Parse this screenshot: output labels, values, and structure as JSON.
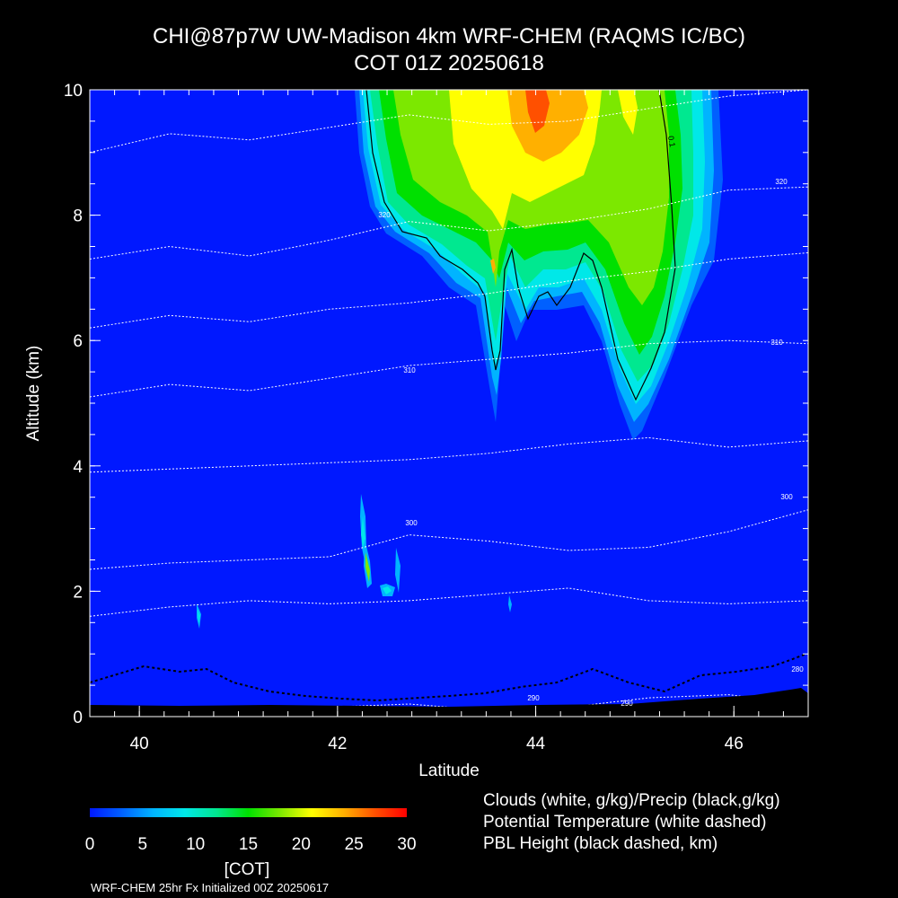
{
  "chart_data": {
    "type": "heatmap",
    "title": "CHI@87p7W UW-Madison 4km WRF-CHEM (RAQMS IC/BC)",
    "subtitle": "COT 01Z 20250618",
    "xlabel": "Latitude",
    "ylabel": "Altitude (km)",
    "xlim": [
      39.5,
      46.75
    ],
    "ylim": [
      0,
      10
    ],
    "x_ticks": [
      40,
      42,
      44,
      46
    ],
    "y_ticks": [
      0,
      2,
      4,
      6,
      8,
      10
    ],
    "grid": false,
    "colorbar": {
      "label": "[COT]",
      "range": [
        0,
        30
      ],
      "ticks": [
        0,
        5,
        10,
        15,
        20,
        25,
        30
      ],
      "colors": [
        "#0018ff",
        "#0060ff",
        "#00b4ff",
        "#00e8e8",
        "#00e890",
        "#00e000",
        "#7ce800",
        "#ffff00",
        "#ffb000",
        "#ff5000",
        "#ff0000"
      ]
    },
    "field_description": {
      "background_value": 0,
      "cloud_mass_lat_range": [
        42.75,
        45.45
      ],
      "cloud_mass_max_value": 28,
      "contour_label": "0.1"
    },
    "potential_temperature_labels": [
      "320",
      "320",
      "310",
      "310",
      "300",
      "300",
      "290",
      "290",
      "280"
    ],
    "legend": [
      "Clouds (white, g/kg)/Precip (black,g/kg)",
      "Potential Temperature (white dashed)",
      "PBL Height (black dashed, km)"
    ],
    "footer": "WRF-CHEM 25hr  Fx Initialized 00Z 20250617"
  }
}
